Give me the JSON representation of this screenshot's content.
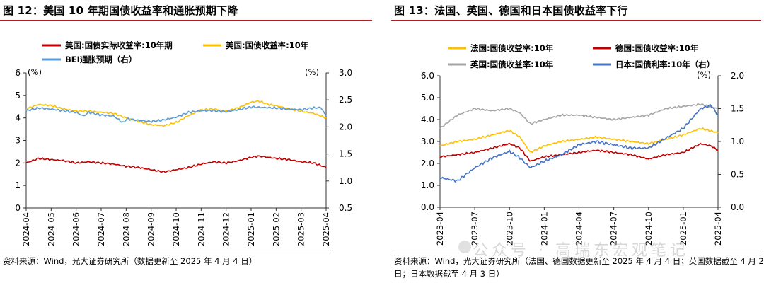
{
  "left": {
    "title": "图 12：美国 10 年期国债收益率和通胀预期下降",
    "source": "资料来源：Wind，光大证券研究所（数据更新至 2025 年 4 月 4 日）",
    "colors": {
      "real": "#c00000",
      "nominal": "#ffc000",
      "bei": "#5b9bd5"
    },
    "chart_data": {
      "type": "line",
      "left_axis_unit": "(%)",
      "right_axis_unit": "(%)",
      "ylim_left": [
        0,
        6
      ],
      "ylim_right": [
        0.5,
        3.0
      ],
      "yticks_left": [
        "0",
        "1",
        "2",
        "3",
        "4",
        "5",
        "6"
      ],
      "yticks_right": [
        "0.5",
        "1.0",
        "1.5",
        "2.0",
        "2.5",
        "3.0"
      ],
      "xticks": [
        "2024-04",
        "2024-05",
        "2024-06",
        "2024-07",
        "2024-08",
        "2024-09",
        "2024-10",
        "2024-11",
        "2024-12",
        "2025-01",
        "2025-02",
        "2025-03",
        "2025-04"
      ],
      "series": [
        {
          "name": "美国:国债实际收益率:10年期",
          "axis": "left",
          "color": "#c00000",
          "x": [
            0,
            0.5,
            1,
            1.5,
            2,
            2.5,
            3,
            3.5,
            4,
            4.5,
            5,
            5.5,
            6,
            6.5,
            7,
            7.5,
            8,
            8.5,
            9,
            9.3,
            9.7,
            10,
            10.5,
            11,
            11.5,
            12
          ],
          "values": [
            2.0,
            2.2,
            2.15,
            2.1,
            2.0,
            2.05,
            2.0,
            1.95,
            1.85,
            1.8,
            1.7,
            1.6,
            1.7,
            1.8,
            1.95,
            2.05,
            2.0,
            2.1,
            2.25,
            2.3,
            2.25,
            2.2,
            2.15,
            2.05,
            2.0,
            1.8
          ]
        },
        {
          "name": "美国:国债收益率:10年",
          "axis": "left",
          "color": "#ffc000",
          "x": [
            0,
            0.5,
            1,
            1.5,
            2,
            2.5,
            3,
            3.5,
            4,
            4.5,
            5,
            5.5,
            6,
            6.5,
            7,
            7.5,
            8,
            8.5,
            9,
            9.3,
            9.7,
            10,
            10.5,
            11,
            11.5,
            12
          ],
          "values": [
            4.4,
            4.6,
            4.55,
            4.4,
            4.3,
            4.3,
            4.25,
            4.2,
            4.0,
            3.85,
            3.7,
            3.65,
            3.8,
            4.1,
            4.35,
            4.4,
            4.3,
            4.45,
            4.7,
            4.75,
            4.6,
            4.55,
            4.4,
            4.3,
            4.2,
            4.0
          ]
        },
        {
          "name": "BEI通胀预期（右）",
          "axis": "right",
          "color": "#5b9bd5",
          "x": [
            0,
            0.5,
            1,
            1.5,
            2,
            2.3,
            2.5,
            3,
            3.5,
            3.9,
            4,
            4.5,
            5,
            5.5,
            6,
            6.5,
            7,
            7.5,
            8,
            8.5,
            9,
            9.5,
            10,
            10.5,
            11,
            11.5,
            11.8,
            12
          ],
          "values": [
            2.3,
            2.35,
            2.33,
            2.3,
            2.27,
            2.2,
            2.27,
            2.22,
            2.2,
            2.07,
            2.15,
            2.12,
            2.1,
            2.13,
            2.18,
            2.27,
            2.3,
            2.3,
            2.28,
            2.32,
            2.37,
            2.36,
            2.35,
            2.33,
            2.32,
            2.35,
            2.36,
            2.2
          ]
        }
      ]
    }
  },
  "right": {
    "title": "图 13：法国、英国、德国和日本国债收益率下行",
    "source": "资料来源：Wind，光大证券研究所（法国、德国数据更新至 2025 年 4 月 4 日；英国数据截至 4 月 2 日；日本数据截至 4 月 3 日）",
    "watermark": "公众号 · 高瑞东宏观笔记",
    "colors": {
      "france": "#ffc000",
      "germany": "#c00000",
      "uk": "#a6a6a6",
      "japan": "#4472c4"
    },
    "chart_data": {
      "type": "line",
      "right_axis_unit": "(%)",
      "ylim_left": [
        0,
        6
      ],
      "ylim_right": [
        0,
        2
      ],
      "yticks_left": [
        "0.0",
        "1.0",
        "2.0",
        "3.0",
        "4.0",
        "5.0",
        "6.0"
      ],
      "yticks_right": [
        "0.0",
        "0.5",
        "1.0",
        "1.5",
        "2.0"
      ],
      "xticks": [
        "2023-04",
        "2023-07",
        "2023-10",
        "2024-01",
        "2024-04",
        "2024-07",
        "2024-10",
        "2025-01",
        "2025-04"
      ],
      "series": [
        {
          "name": "法国:国债收益率:10年",
          "axis": "left",
          "color": "#ffc000",
          "x": [
            0,
            0.5,
            1,
            1.5,
            2,
            2.3,
            2.6,
            3,
            3.5,
            4,
            4.5,
            5,
            5.5,
            6,
            6.5,
            7,
            7.5,
            8
          ],
          "values": [
            2.8,
            3.0,
            3.1,
            3.3,
            3.5,
            3.2,
            2.5,
            2.8,
            3.0,
            3.1,
            3.2,
            3.1,
            3.0,
            2.9,
            3.1,
            3.3,
            3.6,
            3.4
          ]
        },
        {
          "name": "德国:国债收益率:10年",
          "axis": "left",
          "color": "#c00000",
          "x": [
            0,
            0.5,
            1,
            1.5,
            2,
            2.3,
            2.6,
            3,
            3.5,
            4,
            4.5,
            5,
            5.5,
            6,
            6.5,
            7,
            7.5,
            7.8,
            8
          ],
          "values": [
            2.3,
            2.4,
            2.5,
            2.7,
            2.9,
            2.7,
            2.1,
            2.3,
            2.4,
            2.5,
            2.6,
            2.5,
            2.4,
            2.2,
            2.4,
            2.5,
            2.9,
            2.8,
            2.6
          ]
        },
        {
          "name": "英国:国债收益率:10年",
          "axis": "left",
          "color": "#a6a6a6",
          "x": [
            0,
            0.5,
            1,
            1.5,
            2,
            2.3,
            2.6,
            3,
            3.5,
            4,
            4.5,
            5,
            5.5,
            6,
            6.5,
            7,
            7.5,
            8
          ],
          "values": [
            3.6,
            4.2,
            4.5,
            4.4,
            4.5,
            4.3,
            3.8,
            4.0,
            4.2,
            4.2,
            4.1,
            4.0,
            4.1,
            4.2,
            4.5,
            4.6,
            4.7,
            4.5
          ]
        },
        {
          "name": "日本:国债利率:10年（右）",
          "axis": "right",
          "color": "#4472c4",
          "x": [
            0,
            0.5,
            1,
            1.5,
            2,
            2.3,
            2.6,
            3,
            3.5,
            4,
            4.5,
            5,
            5.5,
            6,
            6.5,
            7,
            7.5,
            7.8,
            8
          ],
          "values": [
            0.45,
            0.4,
            0.6,
            0.75,
            0.85,
            0.75,
            0.6,
            0.7,
            0.8,
            0.95,
            1.0,
            0.95,
            0.9,
            0.9,
            1.05,
            1.2,
            1.5,
            1.55,
            1.4
          ]
        }
      ]
    }
  }
}
